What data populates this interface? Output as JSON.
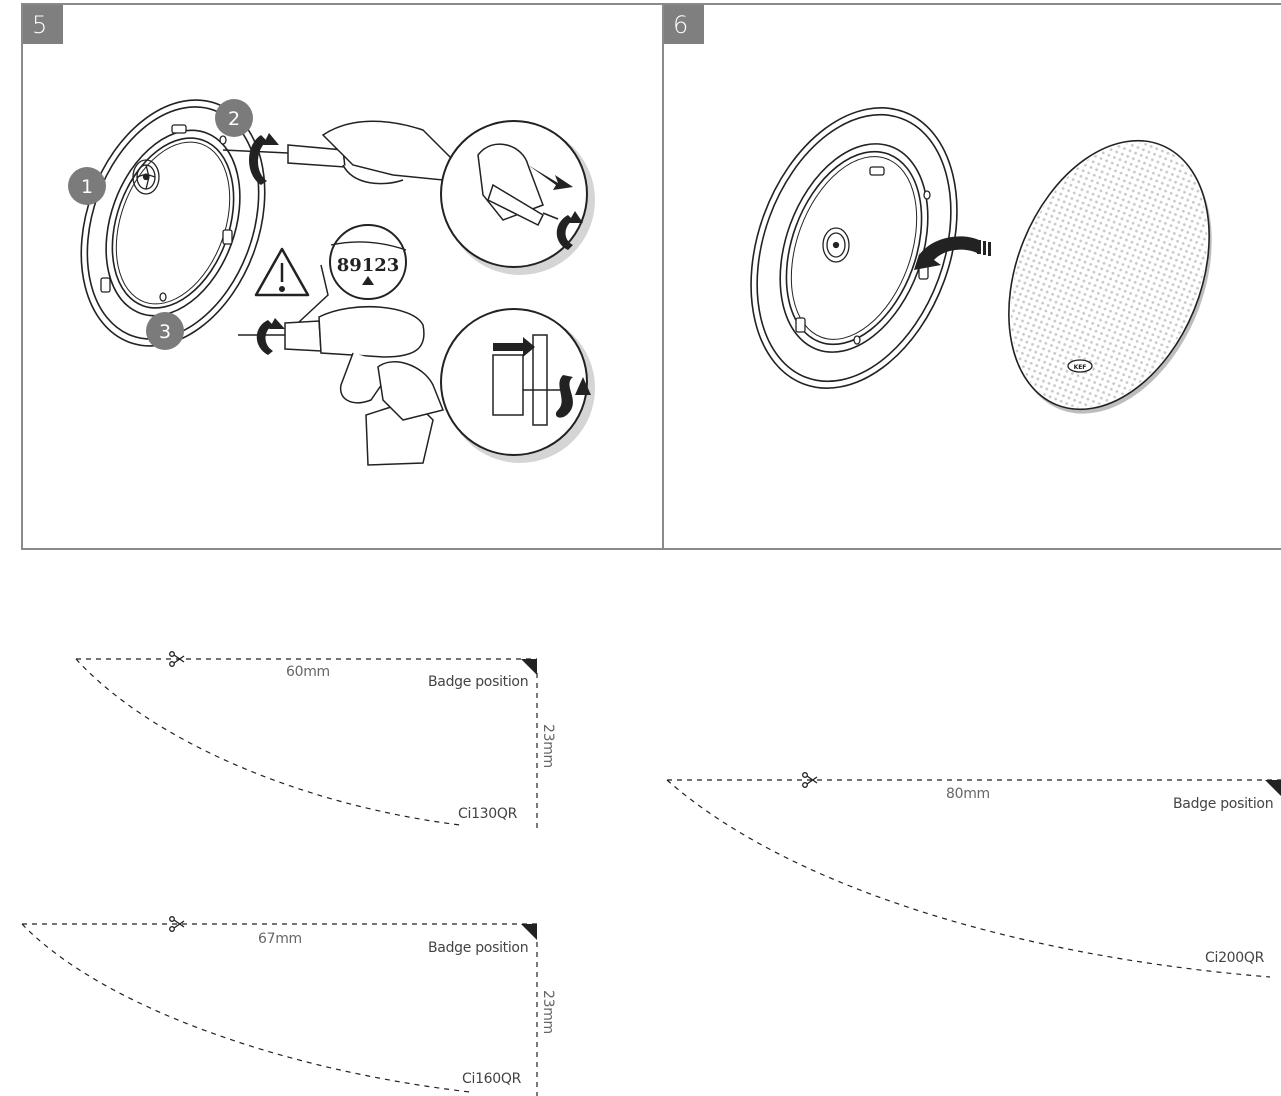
{
  "panels": [
    {
      "step": "5",
      "callouts": [
        "1",
        "2",
        "3"
      ],
      "dial_digits": "89123"
    },
    {
      "step": "6",
      "grille_logo": "KEF"
    }
  ],
  "templates": [
    {
      "width": "60mm",
      "height": "23mm",
      "badge": "Badge position",
      "model": "Ci130QR"
    },
    {
      "width": "67mm",
      "height": "23mm",
      "badge": "Badge position",
      "model": "Ci160QR"
    },
    {
      "width": "80mm",
      "badge": "Badge position",
      "model": "Ci200QR"
    }
  ],
  "icons": [
    "warning-icon",
    "scissors-icon",
    "rotate-icon",
    "arrow-icon"
  ]
}
